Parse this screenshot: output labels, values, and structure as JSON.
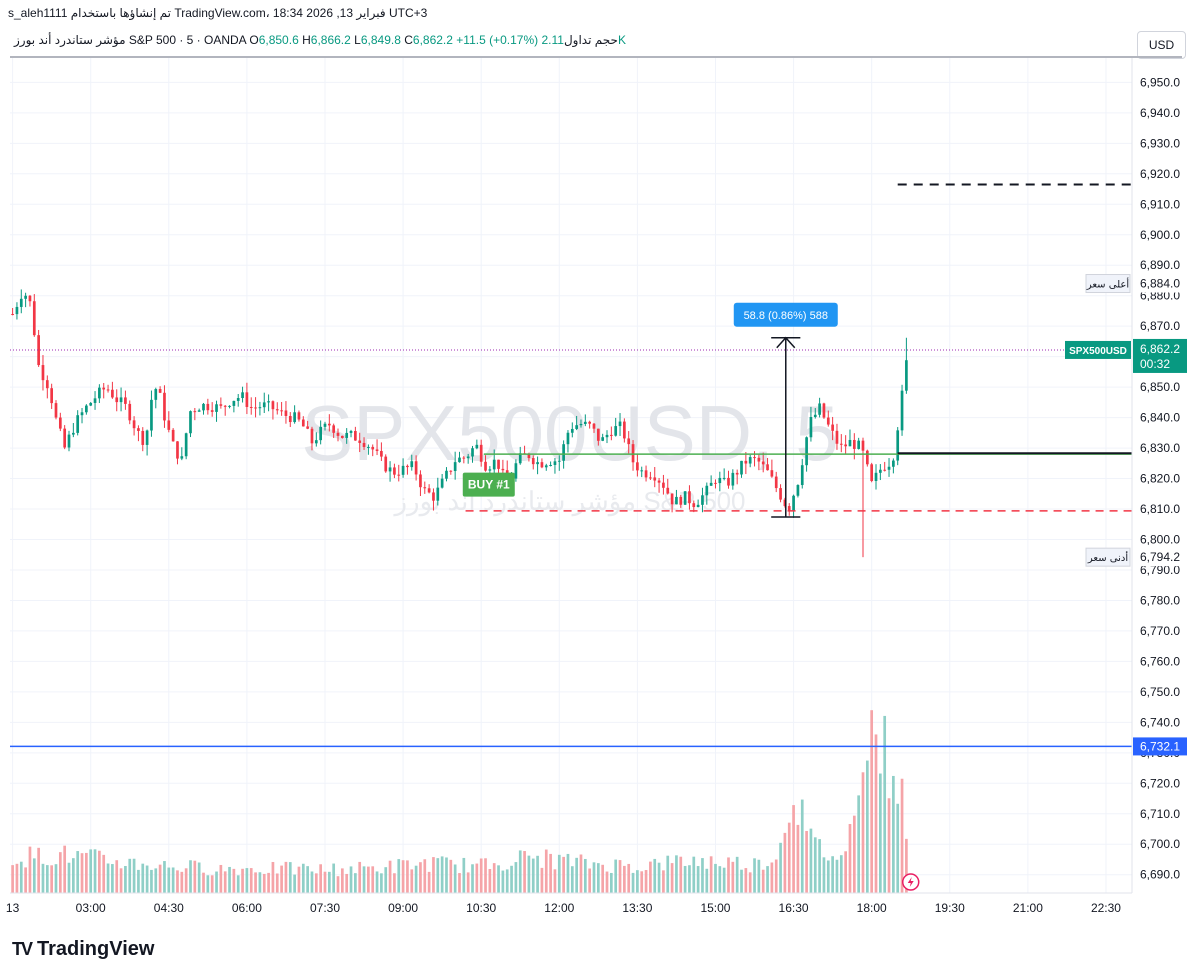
{
  "header": {
    "text": "s_aleh1111 تم إنشاؤها باستخدام TradingView.com، 18:34 2026 ,13 فبراير UTC+3"
  },
  "legend": {
    "name": "مؤشر ستاندرد أند بورز S&P 500 · 5 · OANDA",
    "o_label": "O",
    "o_value": "6,850.6",
    "h_label": "H",
    "h_value": "6,866.2",
    "l_label": "L",
    "l_value": "6,849.8",
    "c_label": "C",
    "c_value": "6,862.2",
    "change": "+11.5 (+0.17%)",
    "vol_label": "حجم تداول",
    "vol_value": "2.11K"
  },
  "currency_button": "USD",
  "watermark": {
    "symbol": "SPX500USD, 5",
    "name": "مؤشر ستاندرد أند بورز S&P 500"
  },
  "colors": {
    "up": "#089981",
    "down": "#f23645",
    "vol_up": "#8fcfc7",
    "vol_down": "#f5a4a8",
    "grid": "#f0f3fa",
    "blue_line": "#2962ff",
    "green_line": "#4caf50",
    "price_tag": "#089981",
    "measure_label": "#2196f3"
  },
  "chart_data": {
    "type": "candlestick",
    "symbol": "SPX500USD",
    "interval": "5",
    "y_ticks": [
      6690,
      6700,
      6710,
      6720,
      6730,
      6740,
      6750,
      6760,
      6770,
      6780,
      6790,
      6800,
      6810,
      6820,
      6830,
      6840,
      6850,
      6860,
      6870,
      6880,
      6890,
      6900,
      6910,
      6920,
      6930,
      6940,
      6950
    ],
    "y_tick_labels": [
      "6,690.0",
      "6,700.0",
      "6,710.0",
      "6,720.0",
      "6,730.0",
      "6,740.0",
      "6,750.0",
      "6,760.0",
      "6,770.0",
      "6,780.0",
      "6,790.0",
      "6,800.0",
      "6,810.0",
      "6,820.0",
      "6,830.0",
      "6,840.0",
      "6,850.0",
      "6,860.0",
      "6,870.0",
      "6,880.0",
      "6,890.0",
      "6,900.0",
      "6,910.0",
      "6,920.0",
      "6,930.0",
      "6,940.0",
      "6,950.0"
    ],
    "ylim": [
      6684,
      6958
    ],
    "x_ticks": [
      "13",
      "03:00",
      "04:30",
      "06:00",
      "07:30",
      "09:00",
      "10:30",
      "12:00",
      "13:30",
      "15:00",
      "16:30",
      "18:00",
      "19:30",
      "21:00",
      "22:30"
    ],
    "x_tick_hours": [
      1.5,
      3.0,
      4.5,
      6.0,
      7.5,
      9.0,
      10.5,
      12.0,
      13.5,
      15.0,
      16.5,
      18.0,
      19.5,
      21.0,
      22.5
    ],
    "x_range_hours": [
      1.45,
      23.0
    ],
    "last_price": 6862.2,
    "last_price_label": "6,862.2",
    "last_symbol_label": "SPX500USD",
    "countdown": "00:32",
    "high_label_text": "أعلى سعر",
    "high_value": 6884.0,
    "high_value_label": "6,884.0",
    "low_label_text": "أدنى سعر",
    "low_value": 6794.2,
    "low_value_label": "6,794.2",
    "blue_level": 6732.1,
    "blue_level_label": "6,732.1",
    "green_entry_level": 6828.0,
    "green_entry_start_hour": 10.55,
    "black_level": 6828.3,
    "black_level_start_hour": 18.5,
    "red_dashed_level": 6809.4,
    "red_dashed_start_hour": 10.2,
    "black_dashed_level": 6916.5,
    "black_dashed_start_hour": 18.5,
    "buy_label": "BUY #1",
    "buy_hour": 10.3,
    "buy_price": 6818,
    "measure": {
      "label": "58.8 (0.86%) 588",
      "hour": 16.35,
      "from": 6807.4,
      "to": 6866.2,
      "bracket_half_width_hours": 0.28
    },
    "candle_knots": [
      [
        1.5,
        6874
      ],
      [
        1.7,
        6882
      ],
      [
        1.85,
        6877
      ],
      [
        2.0,
        6857
      ],
      [
        2.2,
        6850
      ],
      [
        2.35,
        6838
      ],
      [
        2.5,
        6830
      ],
      [
        2.7,
        6838
      ],
      [
        2.9,
        6843
      ],
      [
        3.1,
        6847
      ],
      [
        3.3,
        6850
      ],
      [
        3.5,
        6846
      ],
      [
        3.7,
        6843
      ],
      [
        3.9,
        6835
      ],
      [
        4.05,
        6832
      ],
      [
        4.2,
        6850
      ],
      [
        4.3,
        6849
      ],
      [
        4.45,
        6838
      ],
      [
        4.6,
        6830
      ],
      [
        4.75,
        6826
      ],
      [
        4.9,
        6842
      ],
      [
        5.1,
        6844
      ],
      [
        5.3,
        6844
      ],
      [
        5.5,
        6843
      ],
      [
        5.7,
        6846
      ],
      [
        5.9,
        6847
      ],
      [
        6.1,
        6843
      ],
      [
        6.3,
        6844
      ],
      [
        6.5,
        6843
      ],
      [
        6.7,
        6841
      ],
      [
        6.9,
        6840
      ],
      [
        7.05,
        6838
      ],
      [
        7.25,
        6832
      ],
      [
        7.45,
        6836
      ],
      [
        7.6,
        6838
      ],
      [
        7.8,
        6834
      ],
      [
        8.0,
        6834
      ],
      [
        8.2,
        6833
      ],
      [
        8.4,
        6830
      ],
      [
        8.6,
        6825
      ],
      [
        8.8,
        6822
      ],
      [
        9.0,
        6823
      ],
      [
        9.2,
        6824
      ],
      [
        9.4,
        6816
      ],
      [
        9.6,
        6814
      ],
      [
        9.8,
        6820
      ],
      [
        10.0,
        6826
      ],
      [
        10.2,
        6827
      ],
      [
        10.4,
        6831
      ],
      [
        10.6,
        6824
      ],
      [
        10.8,
        6826
      ],
      [
        11.0,
        6817
      ],
      [
        11.2,
        6826
      ],
      [
        11.4,
        6828
      ],
      [
        11.6,
        6825
      ],
      [
        11.8,
        6826
      ],
      [
        12.0,
        6826
      ],
      [
        12.2,
        6837
      ],
      [
        12.4,
        6838
      ],
      [
        12.6,
        6837
      ],
      [
        12.8,
        6832
      ],
      [
        13.0,
        6836
      ],
      [
        13.2,
        6837
      ],
      [
        13.4,
        6826
      ],
      [
        13.6,
        6822
      ],
      [
        13.8,
        6822
      ],
      [
        14.0,
        6818
      ],
      [
        14.2,
        6812
      ],
      [
        14.4,
        6814
      ],
      [
        14.6,
        6812
      ],
      [
        14.8,
        6815
      ],
      [
        15.0,
        6820
      ],
      [
        15.2,
        6818
      ],
      [
        15.4,
        6822
      ],
      [
        15.6,
        6826
      ],
      [
        15.8,
        6826
      ],
      [
        16.0,
        6822
      ],
      [
        16.2,
        6816
      ],
      [
        16.4,
        6810
      ],
      [
        16.6,
        6820
      ],
      [
        16.8,
        6838
      ],
      [
        17.0,
        6843
      ],
      [
        17.2,
        6836
      ],
      [
        17.4,
        6830
      ],
      [
        17.6,
        6832
      ],
      [
        17.8,
        6830
      ],
      [
        18.0,
        6818
      ],
      [
        18.2,
        6824
      ],
      [
        18.4,
        6826
      ],
      [
        18.55,
        6843
      ],
      [
        18.7,
        6862
      ]
    ],
    "volume_knots": [
      [
        1.5,
        40
      ],
      [
        2.5,
        42
      ],
      [
        3.5,
        35
      ],
      [
        4.5,
        30
      ],
      [
        5.5,
        27
      ],
      [
        6.5,
        27
      ],
      [
        7.5,
        26
      ],
      [
        8.5,
        28
      ],
      [
        9.5,
        33
      ],
      [
        10.5,
        30
      ],
      [
        11.0,
        36
      ],
      [
        11.5,
        40
      ],
      [
        12.5,
        33
      ],
      [
        13.5,
        30
      ],
      [
        14.5,
        36
      ],
      [
        15.3,
        34
      ],
      [
        15.8,
        32
      ],
      [
        16.2,
        42
      ],
      [
        16.5,
        120
      ],
      [
        16.8,
        58
      ],
      [
        17.2,
        42
      ],
      [
        17.5,
        40
      ],
      [
        17.8,
        170
      ],
      [
        18.0,
        185
      ],
      [
        18.2,
        160
      ],
      [
        18.4,
        145
      ],
      [
        18.55,
        110
      ],
      [
        18.7,
        70
      ]
    ],
    "volume_max_px": 250
  },
  "brand": {
    "logo_mark": "TV",
    "logo_text": "TradingView"
  }
}
